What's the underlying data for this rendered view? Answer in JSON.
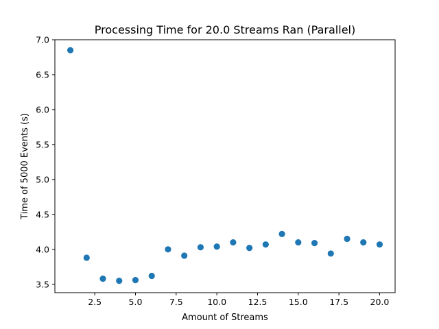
{
  "chart_data": {
    "type": "scatter",
    "title": "Processing Time for 20.0 Streams Ran (Parallel)",
    "xlabel": "Amount of Streams",
    "ylabel": "Time of 5000 Events (s)",
    "xlim": [
      0.05,
      20.95
    ],
    "ylim": [
      3.38,
      7.0
    ],
    "grid": false,
    "legend": "none",
    "marker_color": "#1f77b4",
    "xticks": [
      2.5,
      5.0,
      7.5,
      10.0,
      12.5,
      15.0,
      17.5,
      20.0
    ],
    "xtick_labels": [
      "2.5",
      "5.0",
      "7.5",
      "10.0",
      "12.5",
      "15.0",
      "17.5",
      "20.0"
    ],
    "yticks": [
      3.5,
      4.0,
      4.5,
      5.0,
      5.5,
      6.0,
      6.5,
      7.0
    ],
    "ytick_labels": [
      "3.5",
      "4.0",
      "4.5",
      "5.0",
      "5.5",
      "6.0",
      "6.5",
      "7.0"
    ],
    "x": [
      1,
      2,
      3,
      4,
      5,
      6,
      7,
      8,
      9,
      10,
      11,
      12,
      13,
      14,
      15,
      16,
      17,
      18,
      19,
      20
    ],
    "y": [
      6.85,
      3.88,
      3.58,
      3.55,
      3.56,
      3.62,
      4.0,
      3.91,
      4.03,
      4.04,
      4.1,
      4.02,
      4.07,
      4.22,
      4.1,
      4.09,
      3.94,
      4.15,
      4.1,
      4.07
    ]
  }
}
